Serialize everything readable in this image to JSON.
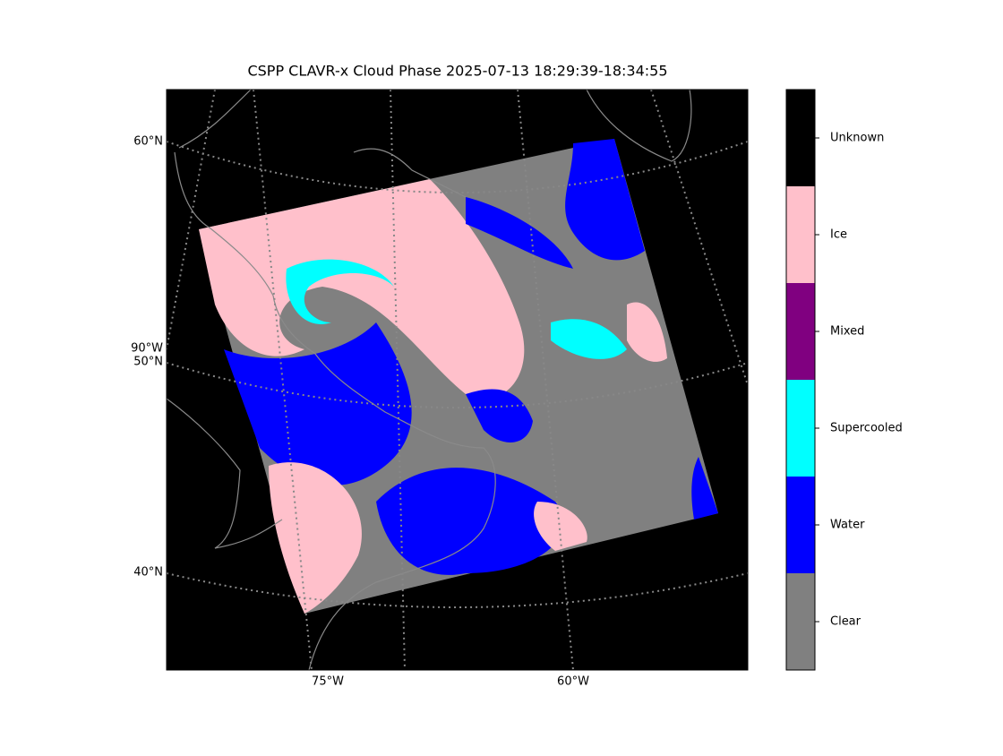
{
  "title": "CSPP CLAVR-x Cloud Phase 2025-07-13 18:29:39-18:34:55",
  "map": {
    "lat_labels": [
      "60°N",
      "50°N",
      "40°N"
    ],
    "lon_labels": [
      "90°W",
      "75°W",
      "60°W"
    ]
  },
  "colorbar": {
    "categories": [
      {
        "label": "Unknown",
        "color": "#000000"
      },
      {
        "label": "Ice",
        "color": "#ffc0cb"
      },
      {
        "label": "Mixed",
        "color": "#800080"
      },
      {
        "label": "Supercooled",
        "color": "#00ffff"
      },
      {
        "label": "Water",
        "color": "#0000ff"
      },
      {
        "label": "Clear",
        "color": "#808080"
      }
    ]
  }
}
